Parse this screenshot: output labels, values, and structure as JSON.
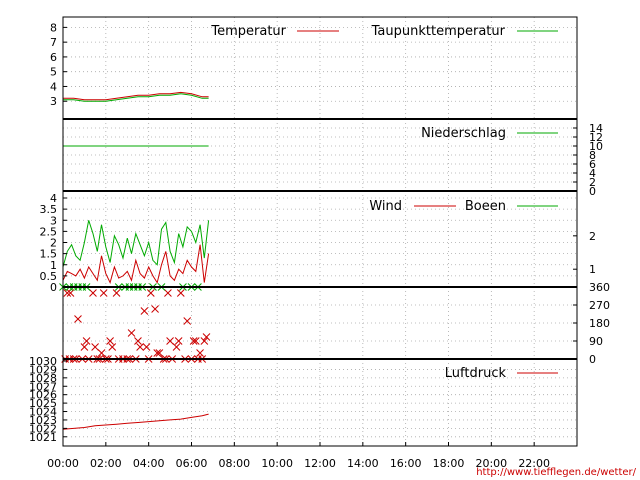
{
  "chart_data": {
    "x_ticks": [
      "00:00",
      "02:00",
      "04:00",
      "06:00",
      "08:00",
      "10:00",
      "12:00",
      "14:00",
      "16:00",
      "18:00",
      "20:00",
      "22:00"
    ],
    "credit": "http://www.tiefflegen.de/wetter/",
    "panels": [
      {
        "id": "temperature",
        "type": "line",
        "ylim": [
          2,
          8.5
        ],
        "y_ticks": [
          "3",
          "4",
          "5",
          "6",
          "7",
          "8"
        ],
        "y_tick_values": [
          3,
          4,
          5,
          6,
          7,
          8
        ],
        "grid": true,
        "series": [
          {
            "name": "Temperatur",
            "color": "#cc0000",
            "x": [
              0,
              0.5,
              1,
              1.5,
              2,
              2.5,
              3,
              3.5,
              4,
              4.5,
              5,
              5.5,
              6,
              6.5,
              6.8
            ],
            "y": [
              3.2,
              3.2,
              3.1,
              3.1,
              3.1,
              3.2,
              3.3,
              3.4,
              3.4,
              3.5,
              3.5,
              3.6,
              3.5,
              3.3,
              3.3
            ]
          },
          {
            "name": "Taupunkttemperatur",
            "color": "#00aa00",
            "x": [
              0,
              0.5,
              1,
              1.5,
              2,
              2.5,
              3,
              3.5,
              4,
              4.5,
              5,
              5.5,
              6,
              6.5,
              6.8
            ],
            "y": [
              3.1,
              3.1,
              3.0,
              3.0,
              3.0,
              3.1,
              3.2,
              3.3,
              3.3,
              3.4,
              3.4,
              3.5,
              3.4,
              3.2,
              3.2
            ]
          }
        ]
      },
      {
        "id": "precipitation",
        "type": "line",
        "ylim": [
          0,
          14
        ],
        "y_ticks_right": [
          "0",
          "2",
          "4",
          "6",
          "8",
          "10",
          "12",
          "14"
        ],
        "y_tick_values": [
          0,
          2,
          4,
          6,
          8,
          10,
          12,
          14
        ],
        "grid": true,
        "series": [
          {
            "name": "Niederschlag",
            "color": "#00aa00",
            "x": [
              0,
              6.8
            ],
            "y": [
              10,
              10
            ]
          }
        ]
      },
      {
        "id": "wind",
        "type": "line",
        "ylim": [
          0,
          4
        ],
        "y_ticks": [
          "0",
          "0.5",
          "1",
          "1.5",
          "2",
          "2.5",
          "3",
          "3.5",
          "4"
        ],
        "y_tick_values": [
          0,
          0.5,
          1,
          1.5,
          2,
          2.5,
          3,
          3.5,
          4
        ],
        "y_ticks_right": [
          "1",
          "2"
        ],
        "y_tick_values_right": [
          0.8,
          2.3
        ],
        "grid": true,
        "series": [
          {
            "name": "Wind",
            "color": "#cc0000",
            "x": [
              0,
              0.2,
              0.4,
              0.6,
              0.8,
              1,
              1.2,
              1.4,
              1.6,
              1.8,
              2,
              2.2,
              2.4,
              2.6,
              2.8,
              3,
              3.2,
              3.4,
              3.6,
              3.8,
              4,
              4.2,
              4.4,
              4.6,
              4.8,
              5,
              5.2,
              5.4,
              5.6,
              5.8,
              6,
              6.2,
              6.4,
              6.6,
              6.8
            ],
            "y": [
              0.3,
              0.7,
              0.6,
              0.5,
              0.8,
              0.4,
              0.9,
              0.6,
              0.3,
              1.4,
              0.6,
              0.2,
              0.9,
              0.4,
              0.5,
              0.7,
              0.3,
              1.2,
              0.6,
              0.4,
              0.9,
              0.5,
              0.2,
              1.0,
              1.6,
              0.5,
              0.3,
              0.8,
              0.6,
              1.2,
              0.9,
              0.7,
              1.9,
              0.2,
              1.5
            ]
          },
          {
            "name": "Boeen",
            "color": "#00aa00",
            "x": [
              0,
              0.2,
              0.4,
              0.6,
              0.8,
              1,
              1.2,
              1.4,
              1.6,
              1.8,
              2,
              2.2,
              2.4,
              2.6,
              2.8,
              3,
              3.2,
              3.4,
              3.6,
              3.8,
              4,
              4.2,
              4.4,
              4.6,
              4.8,
              5,
              5.2,
              5.4,
              5.6,
              5.8,
              6,
              6.2,
              6.4,
              6.6,
              6.8
            ],
            "y": [
              0.9,
              1.6,
              1.9,
              1.4,
              1.2,
              2.0,
              3.0,
              2.4,
              1.6,
              2.8,
              1.8,
              1.1,
              2.3,
              1.9,
              1.3,
              2.2,
              1.5,
              2.4,
              1.9,
              1.4,
              2.0,
              1.2,
              1.0,
              2.6,
              2.9,
              1.6,
              1.1,
              2.4,
              1.8,
              2.7,
              2.5,
              2.0,
              2.8,
              1.3,
              3.0
            ]
          }
        ]
      },
      {
        "id": "wind_direction",
        "type": "scatter",
        "marker": "x",
        "ylim": [
          0,
          360
        ],
        "y_ticks_right": [
          "0",
          "90",
          "180",
          "270",
          "360"
        ],
        "y_tick_values": [
          0,
          90,
          180,
          270,
          360
        ],
        "grid": true,
        "series": [
          {
            "name": "",
            "color": "#cc0000",
            "x": [
              0.1,
              0.2,
              0.35,
              0.5,
              0.7,
              1,
              1.2,
              1.4,
              1.5,
              1.7,
              1.9,
              2.1,
              2.3,
              2.5,
              2.8,
              3,
              3.2,
              3.4,
              3.6,
              3.8,
              4,
              4.1,
              4.3,
              4.5,
              4.7,
              4.9,
              5.1,
              5.3,
              5.5,
              5.8,
              6,
              6.2,
              6.4,
              6.5,
              6.6,
              6.7,
              0.3,
              0.6,
              0.9,
              1.1,
              1.6,
              1.8,
              2.0,
              2.2,
              2.6,
              3.1,
              3.5,
              3.9,
              4.4,
              4.8,
              5.0,
              5.4,
              5.7,
              6.1,
              6.3
            ],
            "y": [
              0,
              330,
              330,
              0,
              200,
              60,
              0,
              330,
              60,
              0,
              330,
              0,
              60,
              330,
              0,
              0,
              130,
              0,
              60,
              240,
              0,
              330,
              250,
              30,
              0,
              330,
              0,
              60,
              330,
              190,
              0,
              90,
              30,
              0,
              90,
              110,
              0,
              0,
              0,
              90,
              0,
              30,
              0,
              90,
              0,
              0,
              90,
              60,
              30,
              0,
              90,
              90,
              0,
              90,
              0
            ]
          },
          {
            "name": "",
            "color": "#00aa00",
            "x": [
              0,
              0.3,
              0.5,
              0.7,
              0.9,
              1.1,
              2.6,
              2.9,
              3.1,
              3.3,
              3.5,
              3.7,
              4.2,
              4.6,
              5.6,
              6.0,
              6.3
            ],
            "y": [
              360,
              360,
              360,
              360,
              360,
              360,
              360,
              360,
              360,
              360,
              360,
              360,
              360,
              360,
              360,
              360,
              360
            ]
          }
        ]
      },
      {
        "id": "pressure",
        "type": "line",
        "ylim": [
          1020.5,
          1030
        ],
        "y_ticks": [
          "1021",
          "1022",
          "1023",
          "1024",
          "1025",
          "1026",
          "1027",
          "1028",
          "1029",
          "1030"
        ],
        "y_tick_values": [
          1021,
          1022,
          1023,
          1024,
          1025,
          1026,
          1027,
          1028,
          1029,
          1030
        ],
        "grid": true,
        "series": [
          {
            "name": "Luftdruck",
            "color": "#cc0000",
            "x": [
              0,
              0.5,
              1,
              1.5,
              2,
              2.5,
              3,
              3.5,
              4,
              4.5,
              5,
              5.5,
              6,
              6.5,
              6.8
            ],
            "y": [
              1021.9,
              1022.0,
              1022.1,
              1022.3,
              1022.4,
              1022.5,
              1022.6,
              1022.7,
              1022.8,
              1022.9,
              1023.0,
              1023.1,
              1023.3,
              1023.5,
              1023.7
            ]
          }
        ]
      }
    ]
  }
}
